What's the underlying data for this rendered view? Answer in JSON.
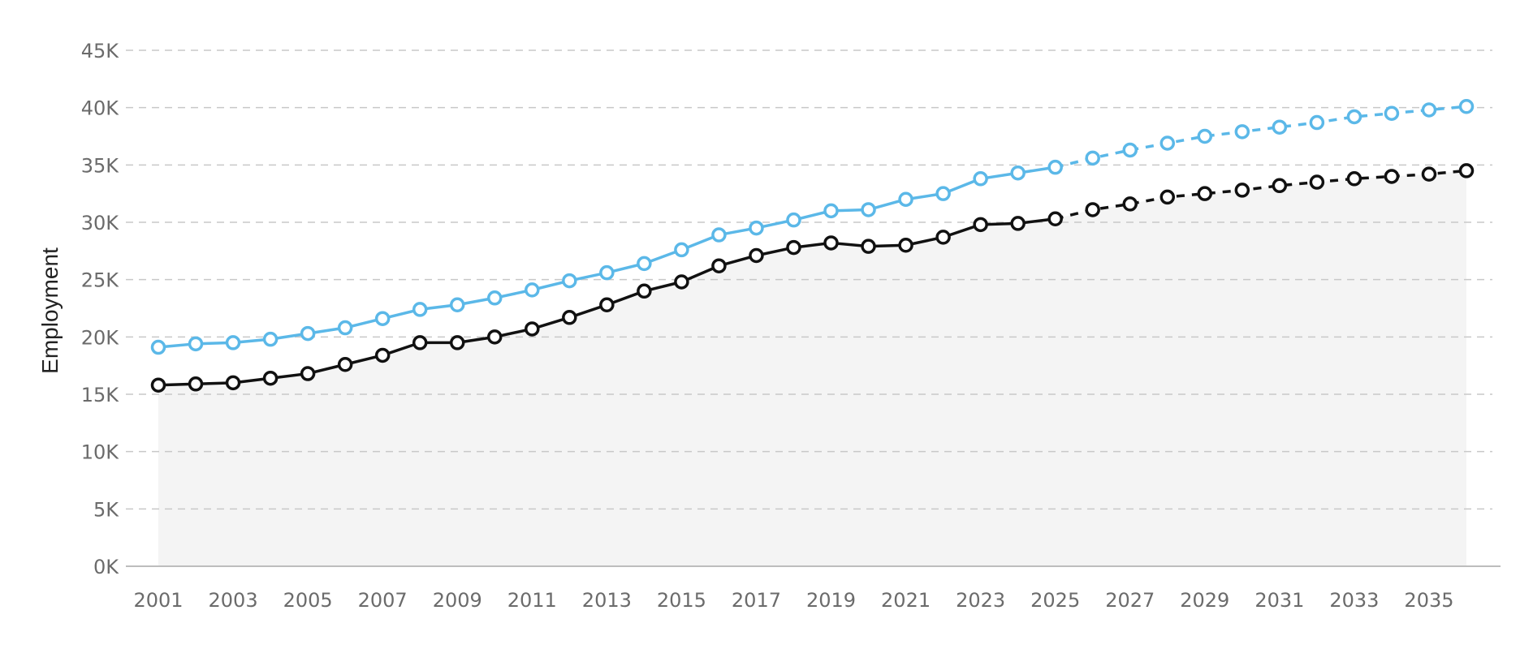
{
  "chart_data": {
    "type": "line",
    "ylabel": "Employment",
    "xlabel": "",
    "ylim": [
      0,
      45000
    ],
    "y_ticks": [
      0,
      5000,
      10000,
      15000,
      20000,
      25000,
      30000,
      35000,
      40000,
      45000
    ],
    "y_tick_labels": [
      "0K",
      "5K",
      "10K",
      "15K",
      "20K",
      "25K",
      "30K",
      "35K",
      "40K",
      "45K"
    ],
    "x": [
      2001,
      2002,
      2003,
      2004,
      2005,
      2006,
      2007,
      2008,
      2009,
      2010,
      2011,
      2012,
      2013,
      2014,
      2015,
      2016,
      2017,
      2018,
      2019,
      2020,
      2021,
      2022,
      2023,
      2024,
      2025,
      2026,
      2027,
      2028,
      2029,
      2030,
      2031,
      2032,
      2033,
      2034,
      2035,
      2036
    ],
    "x_tick_labels": [
      "2001",
      "2003",
      "2005",
      "2007",
      "2009",
      "2011",
      "2013",
      "2015",
      "2017",
      "2019",
      "2021",
      "2023",
      "2025",
      "2027",
      "2029",
      "2031",
      "2033",
      "2035"
    ],
    "projection_start": 2025,
    "grid": true,
    "shaded_area_under_series": 1,
    "series": [
      {
        "color": "#5bb8e8",
        "values": [
          19100,
          19400,
          19500,
          19800,
          20300,
          20800,
          21600,
          22400,
          22800,
          23400,
          24100,
          24900,
          25600,
          26400,
          27600,
          28900,
          29500,
          30200,
          31000,
          31100,
          32000,
          32500,
          33800,
          34300,
          34800,
          35600,
          36300,
          36900,
          37500,
          37900,
          38300,
          38700,
          39200,
          39500,
          39800,
          40100
        ]
      },
      {
        "color": "#111111",
        "values": [
          15800,
          15900,
          16000,
          16400,
          16800,
          17600,
          18400,
          19500,
          19500,
          20000,
          20700,
          21700,
          22800,
          24000,
          24800,
          26200,
          27100,
          27800,
          28200,
          27900,
          28000,
          28700,
          29800,
          29900,
          30300,
          31100,
          31600,
          32200,
          32500,
          32800,
          33200,
          33500,
          33800,
          34000,
          34200,
          34500
        ]
      }
    ]
  }
}
